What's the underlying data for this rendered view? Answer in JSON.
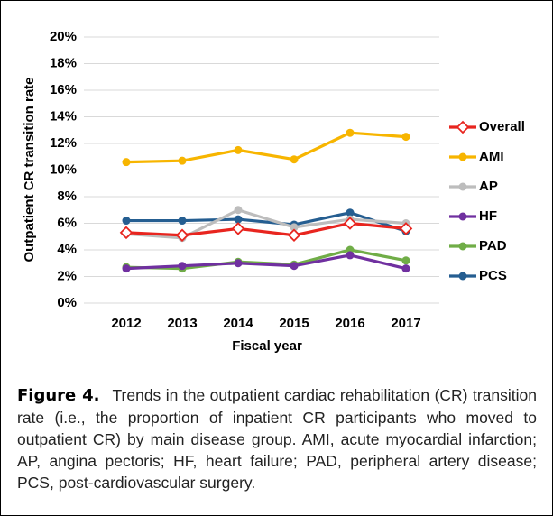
{
  "chart_data": {
    "type": "line",
    "xlabel": "Fiscal year",
    "ylabel": "Outpatient CR transition rate",
    "categories": [
      "2012",
      "2013",
      "2014",
      "2015",
      "2016",
      "2017"
    ],
    "ylim": [
      0,
      20
    ],
    "yticks": [
      {
        "value": 0,
        "label": "0%"
      },
      {
        "value": 2,
        "label": "2%"
      },
      {
        "value": 4,
        "label": "4%"
      },
      {
        "value": 6,
        "label": "6%"
      },
      {
        "value": 8,
        "label": "8%"
      },
      {
        "value": 10,
        "label": "10%"
      },
      {
        "value": 12,
        "label": "12%"
      },
      {
        "value": 14,
        "label": "14%"
      },
      {
        "value": 16,
        "label": "16%"
      },
      {
        "value": 18,
        "label": "18%"
      },
      {
        "value": 20,
        "label": "20%"
      }
    ],
    "grid": true,
    "legend": "right",
    "series": [
      {
        "name": "Overall",
        "color": "#e8251f",
        "marker": "diamond",
        "values": [
          5.3,
          5.1,
          5.6,
          5.1,
          6.0,
          5.6
        ]
      },
      {
        "name": "AMI",
        "color": "#f7b500",
        "marker": "circle",
        "values": [
          10.6,
          10.7,
          11.5,
          10.8,
          12.8,
          12.5
        ]
      },
      {
        "name": "AP",
        "color": "#bdbdbd",
        "marker": "circle",
        "values": [
          5.2,
          4.9,
          7.0,
          5.7,
          6.3,
          6.0
        ]
      },
      {
        "name": "HF",
        "color": "#7030a0",
        "marker": "circle",
        "values": [
          2.6,
          2.8,
          3.0,
          2.8,
          3.6,
          2.6
        ]
      },
      {
        "name": "PAD",
        "color": "#70ad47",
        "marker": "circle",
        "values": [
          2.7,
          2.6,
          3.1,
          2.9,
          4.0,
          3.2
        ]
      },
      {
        "name": "PCS",
        "color": "#255e91",
        "marker": "circle",
        "values": [
          6.2,
          6.2,
          6.3,
          5.9,
          6.8,
          5.4
        ]
      }
    ]
  },
  "caption": {
    "label": "Figure 4.",
    "text": "Trends in the outpatient cardiac rehabilitation (CR) transition rate (i.e., the proportion of inpatient CR participants who moved to outpatient CR) by main disease group. AMI, acute myocardial infarction; AP, angina pectoris; HF, heart failure; PAD, peripheral artery disease; PCS, post-cardiovascular surgery."
  }
}
